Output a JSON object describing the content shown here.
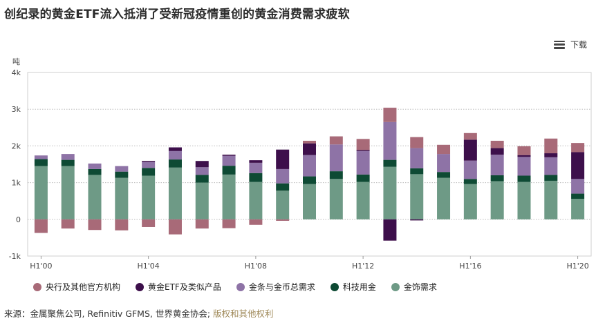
{
  "page": {
    "title": "创纪录的黄金ETF流入抵消了受新冠疫情重创的黄金消费需求疲软",
    "menu_label": "下载",
    "source_prefix": "来源：",
    "source_text": "金属聚焦公司, Refinitiv GFMS, 世界黄金协会;",
    "source_link": "版权和其他权利"
  },
  "chart_data": {
    "type": "bar",
    "stacked": true,
    "ylabel": "吨",
    "ylim": [
      -1000,
      4000
    ],
    "yticks": [
      -1000,
      0,
      1000,
      2000,
      3000,
      4000
    ],
    "ytick_labels": [
      "-1k",
      "0",
      "1k",
      "2k",
      "3k",
      "4k"
    ],
    "categories": [
      "H1'00",
      "H1'01",
      "H1'02",
      "H1'03",
      "H1'04",
      "H1'05",
      "H1'06",
      "H1'07",
      "H1'08",
      "H1'09",
      "H1'10",
      "H1'11",
      "H1'12",
      "H1'13",
      "H1'14",
      "H1'15",
      "H1'16",
      "H1'17",
      "H1'18",
      "H1'19",
      "H1'20"
    ],
    "xtick_labels": [
      "H1'00",
      "",
      "",
      "",
      "H1'04",
      "",
      "",
      "",
      "H1'08",
      "",
      "",
      "",
      "H1'12",
      "",
      "",
      "",
      "H1'16",
      "",
      "",
      "",
      "H1'20"
    ],
    "grid": true,
    "legend_position": "bottom",
    "series": [
      {
        "name": "金饰需求",
        "color": "#6e9a86",
        "values": [
          1450,
          1450,
          1210,
          1130,
          1190,
          1410,
          1000,
          1220,
          1020,
          780,
          960,
          1100,
          1020,
          1430,
          1230,
          1130,
          960,
          1040,
          1020,
          1050,
          560
        ]
      },
      {
        "name": "科技用金",
        "color": "#0e4a34",
        "values": [
          190,
          170,
          160,
          170,
          210,
          220,
          210,
          240,
          240,
          200,
          210,
          210,
          200,
          190,
          160,
          160,
          140,
          160,
          170,
          160,
          140
        ]
      },
      {
        "name": "金条与金币总需求",
        "color": "#8e73a6",
        "values": [
          100,
          160,
          150,
          150,
          160,
          230,
          210,
          270,
          280,
          390,
          580,
          730,
          640,
          1030,
          550,
          490,
          500,
          560,
          510,
          480,
          400
        ]
      },
      {
        "name": "黄金ETF及类似产品",
        "color": "#3d0f4b",
        "values": [
          0,
          0,
          0,
          0,
          30,
          100,
          170,
          30,
          70,
          530,
          320,
          0,
          30,
          -580,
          -30,
          0,
          570,
          180,
          50,
          110,
          730
        ]
      },
      {
        "name": "央行及其他官方机构",
        "color": "#a86a78",
        "values": [
          -370,
          -250,
          -290,
          -300,
          -210,
          -410,
          -250,
          -240,
          -150,
          -40,
          70,
          220,
          300,
          390,
          300,
          250,
          180,
          200,
          240,
          400,
          250
        ]
      }
    ]
  }
}
